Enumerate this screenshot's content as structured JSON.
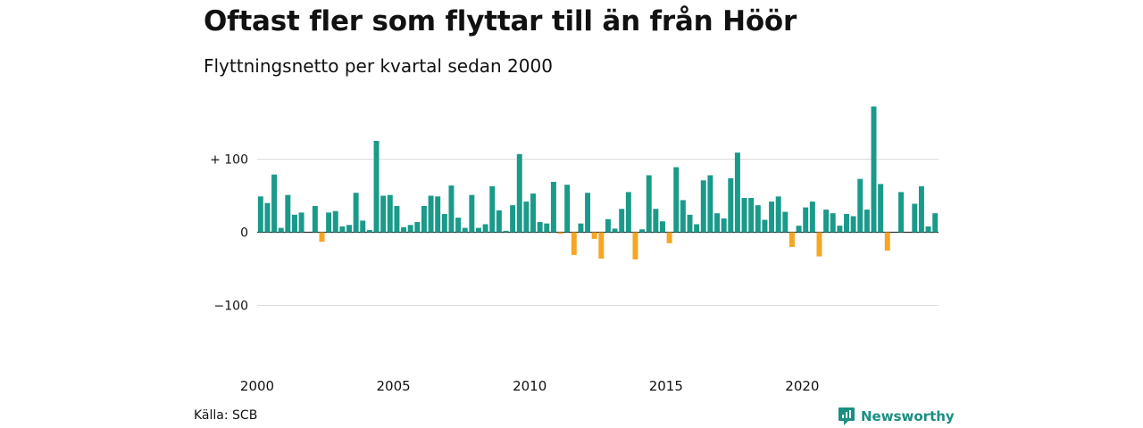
{
  "chart_data": {
    "type": "bar",
    "title": "Oftast fler som flyttar till än från Höör",
    "subtitle": "Flyttningsnetto per kvartal sedan 2000",
    "x_tick_labels": [
      "2000",
      "2005",
      "2010",
      "2015",
      "2020"
    ],
    "x_tick_years": [
      2000,
      2005,
      2010,
      2015,
      2020
    ],
    "start_year": 2000,
    "y_ticks": [
      {
        "value": 100,
        "label": "+ 100"
      },
      {
        "value": 0,
        "label": "0"
      },
      {
        "value": -100,
        "label": "−100"
      }
    ],
    "ylim": [
      -150,
      175
    ],
    "grid": true,
    "colors": {
      "positive": "#1a9a8a",
      "negative": "#f5a623",
      "grid": "#dddddd",
      "baseline": "#333333"
    },
    "series": [
      {
        "values": [
          49,
          40,
          79,
          6,
          51,
          24,
          27,
          0,
          36,
          -13,
          27,
          29,
          8,
          10,
          54,
          16,
          3,
          125,
          50,
          51,
          36,
          7,
          10,
          14,
          36,
          50,
          49,
          25,
          64,
          20,
          6,
          51,
          6,
          11,
          63,
          30,
          2,
          37,
          107,
          42,
          53,
          14,
          12,
          69,
          -2,
          65,
          -31,
          12,
          54,
          -9,
          -36,
          18,
          5,
          32,
          55,
          -37,
          4,
          78,
          32,
          15,
          -15,
          89,
          44,
          24,
          11,
          71,
          78,
          26,
          19,
          74,
          109,
          47,
          47,
          37,
          17,
          42,
          49,
          28,
          -20,
          9,
          34,
          42,
          -33,
          31,
          26,
          9,
          25,
          22,
          73,
          31,
          172,
          66,
          -25,
          0,
          55,
          0,
          39,
          63,
          8,
          26
        ]
      }
    ]
  },
  "source": "Källa: SCB",
  "brand": {
    "name": "Newsworthy",
    "icon": "newsworthy-logo-icon"
  }
}
